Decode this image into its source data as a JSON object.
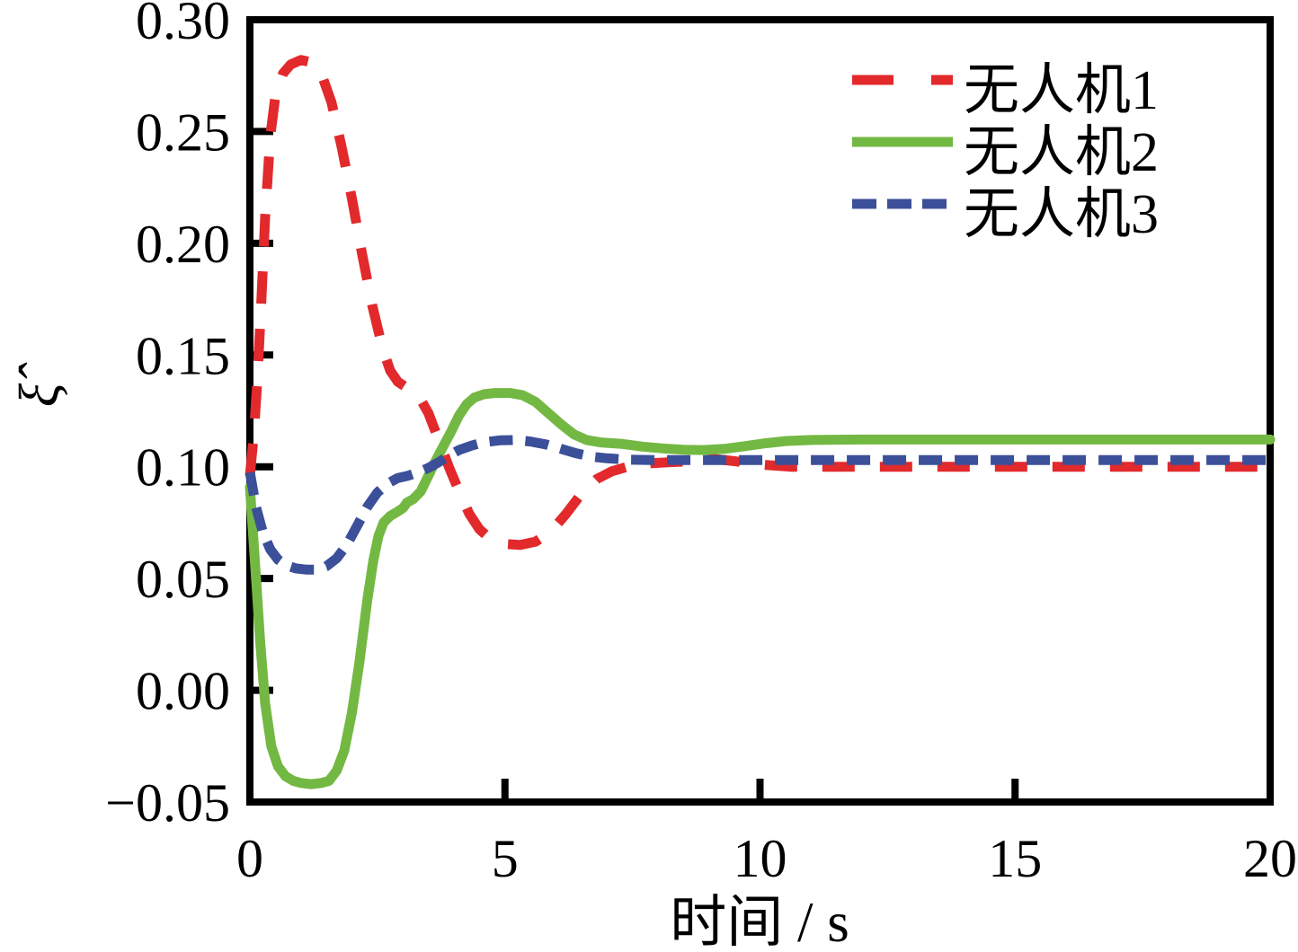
{
  "figure": {
    "background_color": "#ffffff",
    "axis_color": "#000000"
  },
  "chart_data": {
    "type": "line",
    "title": "",
    "xlabel": "时间 / s",
    "ylabel": "ξ̂",
    "xlim": [
      0,
      20
    ],
    "ylim": [
      -0.05,
      0.3
    ],
    "grid": false,
    "legend_position": "upper-right-inside",
    "x_ticks": [
      0,
      5,
      10,
      15,
      20
    ],
    "x_tick_labels": [
      "0",
      "5",
      "10",
      "15",
      "20"
    ],
    "y_ticks": [
      0.3,
      0.25,
      0.2,
      0.15,
      0.1,
      0.05,
      0.0,
      -0.05
    ],
    "y_tick_labels": [
      "0.30",
      "0.25",
      "0.20",
      "0.15",
      "0.10",
      "0.05",
      "0.00",
      "−0.05"
    ],
    "series": [
      {
        "name": "无人机1",
        "color": "#e2292c",
        "style": "dashed",
        "dash": "36 28",
        "legend_dash": "46 42",
        "points": [
          [
            0,
            0.096
          ],
          [
            0.08,
            0.115
          ],
          [
            0.15,
            0.14
          ],
          [
            0.22,
            0.172
          ],
          [
            0.3,
            0.212
          ],
          [
            0.4,
            0.248
          ],
          [
            0.5,
            0.266
          ],
          [
            0.65,
            0.276
          ],
          [
            0.8,
            0.28
          ],
          [
            1.0,
            0.282
          ],
          [
            1.2,
            0.281
          ],
          [
            1.4,
            0.276
          ],
          [
            1.6,
            0.263
          ],
          [
            1.8,
            0.243
          ],
          [
            2.0,
            0.22
          ],
          [
            2.2,
            0.195
          ],
          [
            2.4,
            0.172
          ],
          [
            2.6,
            0.153
          ],
          [
            2.75,
            0.143
          ],
          [
            2.9,
            0.138
          ],
          [
            3.1,
            0.135
          ],
          [
            3.3,
            0.132
          ],
          [
            3.5,
            0.124
          ],
          [
            3.7,
            0.112
          ],
          [
            3.9,
            0.1
          ],
          [
            4.1,
            0.089
          ],
          [
            4.3,
            0.079
          ],
          [
            4.5,
            0.072
          ],
          [
            4.7,
            0.068
          ],
          [
            5.0,
            0.0655
          ],
          [
            5.3,
            0.065
          ],
          [
            5.6,
            0.0665
          ],
          [
            5.9,
            0.071
          ],
          [
            6.2,
            0.079
          ],
          [
            6.5,
            0.088
          ],
          [
            6.8,
            0.0945
          ],
          [
            7.1,
            0.098
          ],
          [
            7.4,
            0.1
          ],
          [
            7.8,
            0.1015
          ],
          [
            8.2,
            0.102
          ],
          [
            8.7,
            0.1025
          ],
          [
            9.1,
            0.1035
          ],
          [
            9.5,
            0.1025
          ],
          [
            10.0,
            0.101
          ],
          [
            10.6,
            0.1
          ],
          [
            11.5,
            0.1
          ],
          [
            13,
            0.1
          ],
          [
            15,
            0.1
          ],
          [
            17,
            0.1
          ],
          [
            19,
            0.1
          ],
          [
            20,
            0.1
          ]
        ]
      },
      {
        "name": "无人机2",
        "color": "#73b843",
        "style": "solid",
        "dash": "",
        "legend_dash": "",
        "points": [
          [
            0,
            0.091
          ],
          [
            0.1,
            0.057
          ],
          [
            0.2,
            0.022
          ],
          [
            0.3,
            -0.006
          ],
          [
            0.42,
            -0.025
          ],
          [
            0.55,
            -0.034
          ],
          [
            0.7,
            -0.0385
          ],
          [
            0.85,
            -0.0405
          ],
          [
            1.0,
            -0.0415
          ],
          [
            1.2,
            -0.042
          ],
          [
            1.4,
            -0.0415
          ],
          [
            1.55,
            -0.0405
          ],
          [
            1.7,
            -0.036
          ],
          [
            1.85,
            -0.027
          ],
          [
            2.0,
            -0.01
          ],
          [
            2.15,
            0.013
          ],
          [
            2.3,
            0.04
          ],
          [
            2.42,
            0.058
          ],
          [
            2.52,
            0.069
          ],
          [
            2.62,
            0.075
          ],
          [
            2.75,
            0.078
          ],
          [
            2.9,
            0.08
          ],
          [
            3.0,
            0.0815
          ],
          [
            3.08,
            0.084
          ],
          [
            3.2,
            0.0855
          ],
          [
            3.35,
            0.089
          ],
          [
            3.5,
            0.096
          ],
          [
            3.65,
            0.103
          ],
          [
            3.8,
            0.1095
          ],
          [
            3.95,
            0.116
          ],
          [
            4.1,
            0.123
          ],
          [
            4.25,
            0.128
          ],
          [
            4.4,
            0.131
          ],
          [
            4.6,
            0.1325
          ],
          [
            4.8,
            0.133
          ],
          [
            5.1,
            0.133
          ],
          [
            5.35,
            0.132
          ],
          [
            5.6,
            0.129
          ],
          [
            5.85,
            0.124
          ],
          [
            6.1,
            0.119
          ],
          [
            6.35,
            0.1145
          ],
          [
            6.6,
            0.112
          ],
          [
            6.9,
            0.1108
          ],
          [
            7.3,
            0.1102
          ],
          [
            7.7,
            0.109
          ],
          [
            8.1,
            0.1082
          ],
          [
            8.5,
            0.1076
          ],
          [
            8.9,
            0.1075
          ],
          [
            9.3,
            0.108
          ],
          [
            9.7,
            0.1092
          ],
          [
            10.1,
            0.1105
          ],
          [
            10.5,
            0.1115
          ],
          [
            11.0,
            0.112
          ],
          [
            12,
            0.1122
          ],
          [
            13,
            0.1122
          ],
          [
            15,
            0.1122
          ],
          [
            17,
            0.1122
          ],
          [
            19,
            0.1122
          ],
          [
            20,
            0.1122
          ]
        ]
      },
      {
        "name": "无人机3",
        "color": "#3c4f99",
        "style": "dashed",
        "dash": "26 14",
        "legend_dash": "27 12",
        "points": [
          [
            0,
            0.0975
          ],
          [
            0.12,
            0.082
          ],
          [
            0.25,
            0.071
          ],
          [
            0.4,
            0.063
          ],
          [
            0.55,
            0.0585
          ],
          [
            0.7,
            0.056
          ],
          [
            0.9,
            0.0545
          ],
          [
            1.1,
            0.054
          ],
          [
            1.3,
            0.054
          ],
          [
            1.5,
            0.0555
          ],
          [
            1.7,
            0.059
          ],
          [
            1.9,
            0.065
          ],
          [
            2.1,
            0.0735
          ],
          [
            2.3,
            0.082
          ],
          [
            2.5,
            0.0885
          ],
          [
            2.7,
            0.0925
          ],
          [
            2.9,
            0.095
          ],
          [
            3.1,
            0.096
          ],
          [
            3.3,
            0.0975
          ],
          [
            3.5,
            0.0995
          ],
          [
            3.7,
            0.102
          ],
          [
            3.9,
            0.105
          ],
          [
            4.1,
            0.1075
          ],
          [
            4.35,
            0.1095
          ],
          [
            4.6,
            0.111
          ],
          [
            4.9,
            0.1118
          ],
          [
            5.2,
            0.112
          ],
          [
            5.5,
            0.1113
          ],
          [
            5.8,
            0.11
          ],
          [
            6.1,
            0.108
          ],
          [
            6.4,
            0.106
          ],
          [
            6.7,
            0.1045
          ],
          [
            7.0,
            0.1038
          ],
          [
            7.4,
            0.1032
          ],
          [
            7.9,
            0.103
          ],
          [
            8.5,
            0.103
          ],
          [
            9.5,
            0.103
          ],
          [
            11,
            0.103
          ],
          [
            13,
            0.103
          ],
          [
            15,
            0.103
          ],
          [
            17,
            0.103
          ],
          [
            19,
            0.103
          ],
          [
            20,
            0.103
          ]
        ]
      }
    ]
  }
}
